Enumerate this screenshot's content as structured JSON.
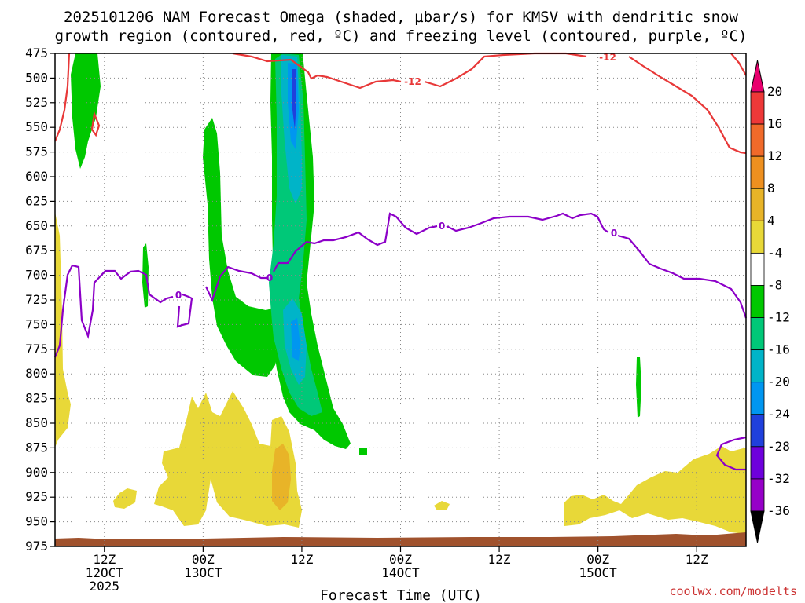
{
  "chart_data": {
    "type": "heatmap",
    "title_lines": [
      "2025101206 NAM Forecast Omega (shaded, µbar/s) for KMSV with dendritic snow",
      "growth region (contoured, red, ºC) and freezing level (contoured, purple, ºC)"
    ],
    "xlabel": "Forecast Time (UTC)",
    "credit": "coolwx.com/modelts",
    "y_axis": {
      "unit": "hPa",
      "range": [
        975,
        475
      ],
      "ticks": [
        475,
        500,
        525,
        550,
        575,
        600,
        625,
        650,
        675,
        700,
        725,
        750,
        775,
        800,
        825,
        850,
        875,
        900,
        925,
        950,
        975
      ]
    },
    "x_axis": {
      "range_hours": [
        6,
        90
      ],
      "ticks": [
        {
          "hour": 12,
          "lines": [
            "12Z",
            "12OCT",
            "2025"
          ]
        },
        {
          "hour": 24,
          "lines": [
            "00Z",
            "13OCT"
          ]
        },
        {
          "hour": 36,
          "lines": [
            "12Z"
          ]
        },
        {
          "hour": 48,
          "lines": [
            "00Z",
            "14OCT"
          ]
        },
        {
          "hour": 60,
          "lines": [
            "12Z"
          ]
        },
        {
          "hour": 72,
          "lines": [
            "00Z",
            "15OCT"
          ]
        },
        {
          "hour": 84,
          "lines": [
            "12Z"
          ]
        }
      ]
    },
    "colorbar": {
      "labels": [
        "20",
        "16",
        "12",
        "8",
        "4",
        "-4",
        "-8",
        "-12",
        "-16",
        "-20",
        "-24",
        "-28",
        "-32",
        "-36"
      ],
      "band_colors": [
        "#e8006e",
        "#ee3838",
        "#f06a2a",
        "#ee9020",
        "#e8b428",
        "#e8d838",
        "#ffffff",
        "#00c800",
        "#00c878",
        "#00b4c8",
        "#0096f0",
        "#2040dc",
        "#6e00dc",
        "#9600c8",
        "#a8a8a8",
        "#000000"
      ]
    },
    "contour_labels": {
      "dgz_red": [
        "-12",
        "-12"
      ],
      "freezing_purple": [
        "0",
        "0",
        "0"
      ]
    },
    "colors": {
      "dgz": "#e83838",
      "freezing": "#8c00c8",
      "ground": "#a0522d"
    }
  }
}
